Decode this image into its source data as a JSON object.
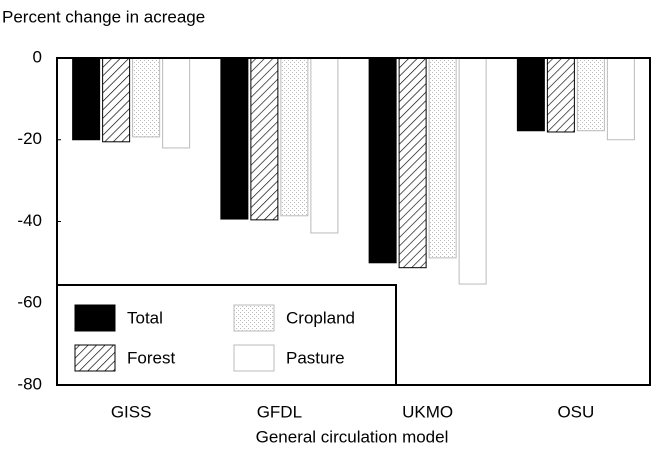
{
  "chart_data": {
    "type": "bar",
    "y_label": "Percent change in acreage",
    "x_label": "General circulation model",
    "categories": [
      "GISS",
      "GFDL",
      "UKMO",
      "OSU"
    ],
    "series": [
      {
        "name": "Total",
        "color": "#000000",
        "pattern": "solid",
        "values": [
          -20,
          -39.4,
          -50.1,
          -17.8
        ]
      },
      {
        "name": "Forest",
        "color": "#000000",
        "pattern": "hatch",
        "values": [
          -20.5,
          -39.6,
          -51.3,
          -18.1
        ]
      },
      {
        "name": "Cropland",
        "color": "#bbbbbb",
        "pattern": "stipple",
        "values": [
          -19.3,
          -38.6,
          -48.9,
          -17.8
        ]
      },
      {
        "name": "Pasture",
        "color": "#ffffff",
        "pattern": "solid",
        "values": [
          -22,
          -42.8,
          -55.3,
          -20
        ]
      }
    ],
    "ylim": [
      -80,
      0
    ],
    "yticks": [
      -80,
      -60,
      -40,
      -20,
      0
    ],
    "grid": false,
    "legend": "lower left"
  }
}
